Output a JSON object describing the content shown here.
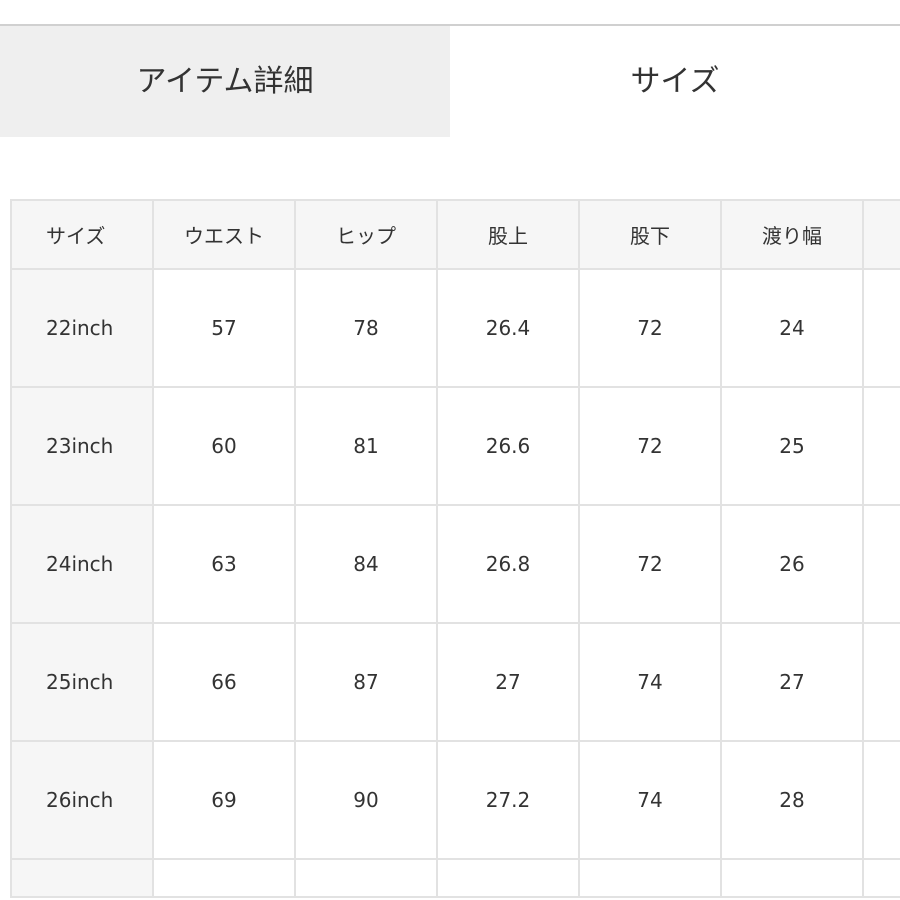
{
  "tabs": [
    {
      "label": "アイテム詳細",
      "active": false
    },
    {
      "label": "サイズ",
      "active": true
    }
  ],
  "size_table": {
    "headers": [
      "サイズ",
      "ウエスト",
      "ヒップ",
      "股上",
      "股下",
      "渡り幅",
      ""
    ],
    "rows": [
      [
        "22inch",
        "57",
        "78",
        "26.4",
        "72",
        "24",
        ""
      ],
      [
        "23inch",
        "60",
        "81",
        "26.6",
        "72",
        "25",
        ""
      ],
      [
        "24inch",
        "63",
        "84",
        "26.8",
        "72",
        "26",
        ""
      ],
      [
        "25inch",
        "66",
        "87",
        "27",
        "74",
        "27",
        ""
      ],
      [
        "26inch",
        "69",
        "90",
        "27.2",
        "74",
        "28",
        ""
      ],
      [
        "",
        "",
        "",
        "",
        "",
        "",
        ""
      ]
    ]
  }
}
